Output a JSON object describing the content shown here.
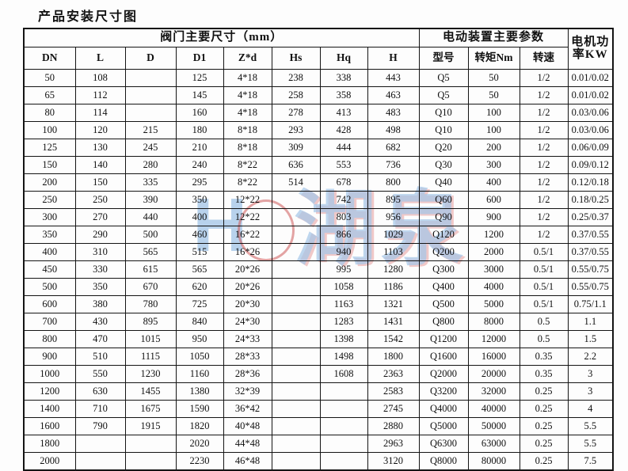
{
  "page_title": "产品安装尺寸图",
  "table": {
    "group_headers": {
      "valve": "阀门主要尺寸（mm）",
      "actuator": "电动装置主要参数",
      "motor_power_line1": "电机功",
      "motor_power_line2": "率KW"
    },
    "columns": [
      "DN",
      "L",
      "D",
      "D1",
      "Z*d",
      "Hs",
      "Hq",
      "H",
      "型号",
      "转矩Nm",
      "转速"
    ],
    "rows": [
      [
        "50",
        "108",
        "",
        "125",
        "4*18",
        "238",
        "338",
        "443",
        "Q5",
        "50",
        "1/2",
        "0.01/0.02"
      ],
      [
        "65",
        "112",
        "",
        "145",
        "4*18",
        "258",
        "358",
        "463",
        "Q5",
        "50",
        "1/2",
        "0.01/0.02"
      ],
      [
        "80",
        "114",
        "",
        "160",
        "4*18",
        "278",
        "413",
        "483",
        "Q10",
        "100",
        "1/2",
        "0.03/0.06"
      ],
      [
        "100",
        "120",
        "215",
        "180",
        "8*18",
        "293",
        "428",
        "498",
        "Q10",
        "100",
        "1/2",
        "0.03/0.06"
      ],
      [
        "125",
        "130",
        "245",
        "210",
        "8*18",
        "309",
        "444",
        "682",
        "Q20",
        "200",
        "1/2",
        "0.06/0.09"
      ],
      [
        "150",
        "140",
        "280",
        "240",
        "8*22",
        "636",
        "553",
        "736",
        "Q30",
        "300",
        "1/2",
        "0.09/0.12"
      ],
      [
        "200",
        "150",
        "335",
        "295",
        "8*22",
        "514",
        "678",
        "800",
        "Q40",
        "400",
        "1/2",
        "0.12/0.18"
      ],
      [
        "250",
        "250",
        "390",
        "350",
        "12*22",
        "",
        "742",
        "895",
        "Q60",
        "600",
        "1/2",
        "0.18/0.25"
      ],
      [
        "300",
        "270",
        "440",
        "400",
        "12*22",
        "",
        "803",
        "956",
        "Q90",
        "900",
        "1/2",
        "0.25/0.37"
      ],
      [
        "350",
        "290",
        "500",
        "460",
        "16*22",
        "",
        "866",
        "1029",
        "Q120",
        "1200",
        "1/2",
        "0.37/0.55"
      ],
      [
        "400",
        "310",
        "565",
        "515",
        "16*26",
        "",
        "940",
        "1103",
        "Q200",
        "2000",
        "0.5/1",
        "0.37/0.55"
      ],
      [
        "450",
        "330",
        "615",
        "565",
        "20*26",
        "",
        "995",
        "1280",
        "Q300",
        "3000",
        "0.5/1",
        "0.55/0.75"
      ],
      [
        "500",
        "350",
        "670",
        "620",
        "20*26",
        "",
        "1058",
        "1186",
        "Q400",
        "4000",
        "0.5/1",
        "0.55/0.75"
      ],
      [
        "600",
        "380",
        "780",
        "725",
        "20*30",
        "",
        "1163",
        "1321",
        "Q500",
        "5000",
        "0.5/1",
        "0.75/1.1"
      ],
      [
        "700",
        "430",
        "895",
        "840",
        "24*30",
        "",
        "1283",
        "1431",
        "Q800",
        "8000",
        "0.5",
        "1.1"
      ],
      [
        "800",
        "470",
        "1015",
        "950",
        "24*33",
        "",
        "1398",
        "1542",
        "Q1200",
        "12000",
        "0.5",
        "1.5"
      ],
      [
        "900",
        "510",
        "1115",
        "1050",
        "28*33",
        "",
        "1498",
        "1800",
        "Q1600",
        "16000",
        "0.35",
        "2.2"
      ],
      [
        "1000",
        "550",
        "1230",
        "1160",
        "28*36",
        "",
        "1608",
        "2363",
        "Q2000",
        "20000",
        "0.35",
        "3"
      ],
      [
        "1200",
        "630",
        "1455",
        "1380",
        "32*39",
        "",
        "",
        "2583",
        "Q3200",
        "32000",
        "0.25",
        "3"
      ],
      [
        "1400",
        "710",
        "1675",
        "1590",
        "36*42",
        "",
        "",
        "2745",
        "Q4000",
        "40000",
        "0.25",
        "4"
      ],
      [
        "1600",
        "790",
        "1915",
        "1820",
        "40*48",
        "",
        "",
        "2880",
        "Q5000",
        "50000",
        "0.25",
        "5.5"
      ],
      [
        "1800",
        "",
        "",
        "2020",
        "44*48",
        "",
        "",
        "2963",
        "Q6300",
        "63000",
        "0.25",
        "5.5"
      ],
      [
        "2000",
        "",
        "",
        "2230",
        "46*48",
        "",
        "",
        "3120",
        "Q8000",
        "80000",
        "0.25",
        "7.5"
      ]
    ]
  },
  "watermark": {
    "logo_letter": "H",
    "text": "湖泉",
    "blue_color": "#a5c6e8",
    "red_color": "#cd5a5a"
  }
}
